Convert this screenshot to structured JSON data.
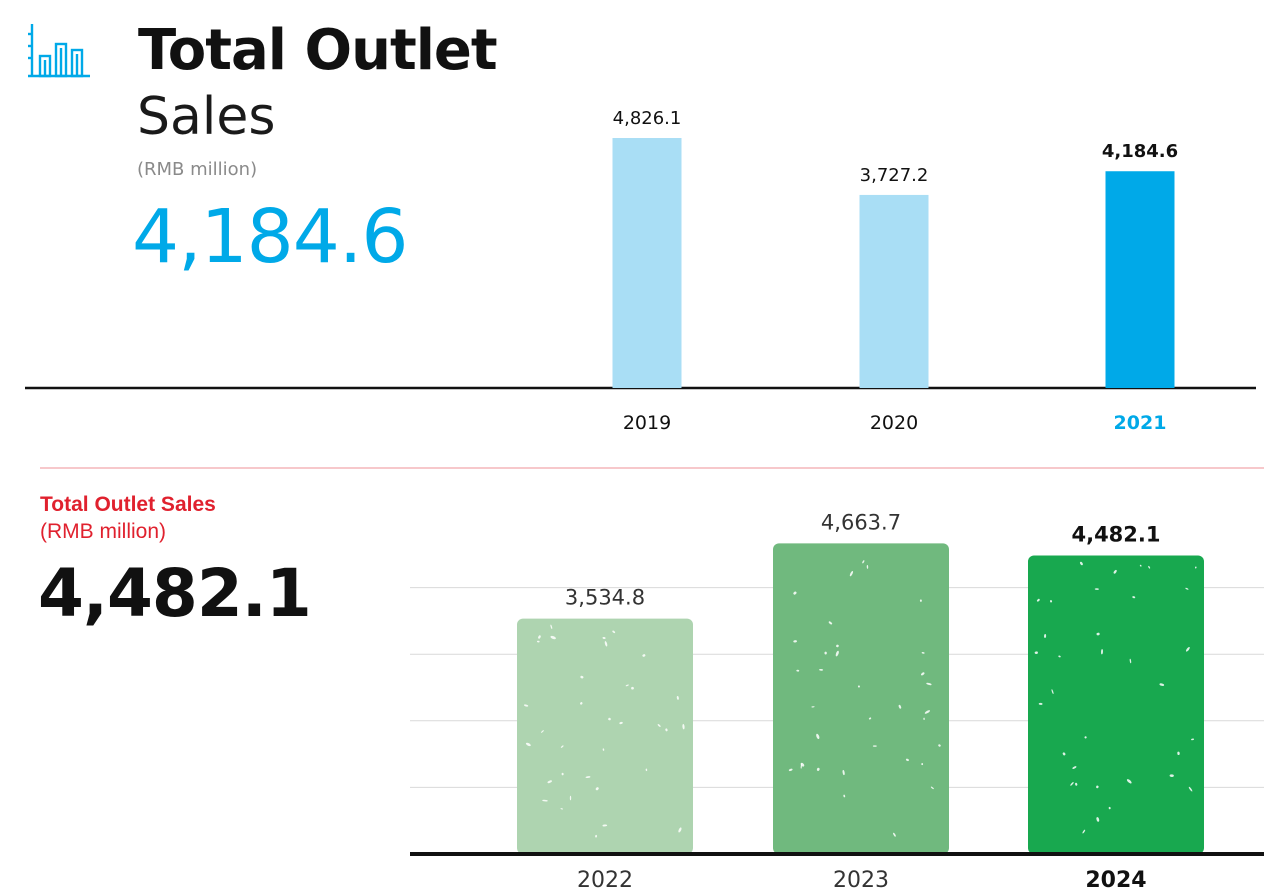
{
  "colors": {
    "accent_blue": "#00a9e8",
    "light_blue": "#a9def5",
    "brand_red": "#e0212e",
    "green_light": "#aed4b0",
    "green_mid": "#70b97e",
    "green_dark": "#18a84f"
  },
  "header": {
    "icon": "bar-chart-icon",
    "title_bold": "Total Outlet",
    "title_light": "Sales",
    "unit": "(RMB million)",
    "highlight_value": "4,184.6"
  },
  "section2": {
    "title": "Total Outlet Sales",
    "unit": "(RMB million)",
    "highlight_value": "4,482.1"
  },
  "chart_data": [
    {
      "type": "bar",
      "categories": [
        "2019",
        "2020",
        "2021"
      ],
      "values": [
        4826.1,
        3727.2,
        4184.6
      ],
      "value_labels": [
        "4,826.1",
        "3,727.2",
        "4,184.6"
      ],
      "highlight_index": 2,
      "title": "",
      "xlabel": "",
      "ylabel": "",
      "grid": false
    },
    {
      "type": "bar",
      "categories": [
        "2022",
        "2023",
        "2024"
      ],
      "values": [
        3534.8,
        4663.7,
        4482.1
      ],
      "value_labels": [
        "3,534.8",
        "4,663.7",
        "4,482.1"
      ],
      "highlight_index": 2,
      "title": "",
      "xlabel": "",
      "ylabel": "",
      "grid": true
    }
  ]
}
